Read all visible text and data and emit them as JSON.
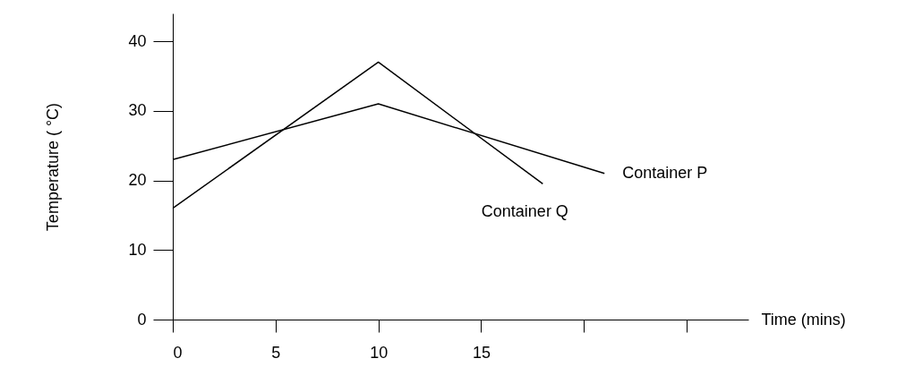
{
  "chart_data": {
    "type": "line",
    "xlabel": "Time (mins)",
    "ylabel": "Temperature ( °C)",
    "xlim": [
      0,
      28
    ],
    "ylim": [
      0,
      44
    ],
    "xticks": [
      0,
      5,
      10,
      15,
      {
        "value": 20,
        "label": null
      },
      {
        "value": 25,
        "label": null
      }
    ],
    "yticks": [
      0,
      10,
      20,
      30,
      40
    ],
    "grid": false,
    "marker": "none",
    "line_style": "solid",
    "series": [
      {
        "name": "Container P",
        "color": "#000000",
        "x": [
          0,
          10,
          21
        ],
        "values": [
          23,
          31,
          21
        ]
      },
      {
        "name": "Container Q",
        "color": "#000000",
        "x": [
          0,
          10,
          18
        ],
        "values": [
          16,
          37,
          19.5
        ]
      }
    ]
  }
}
